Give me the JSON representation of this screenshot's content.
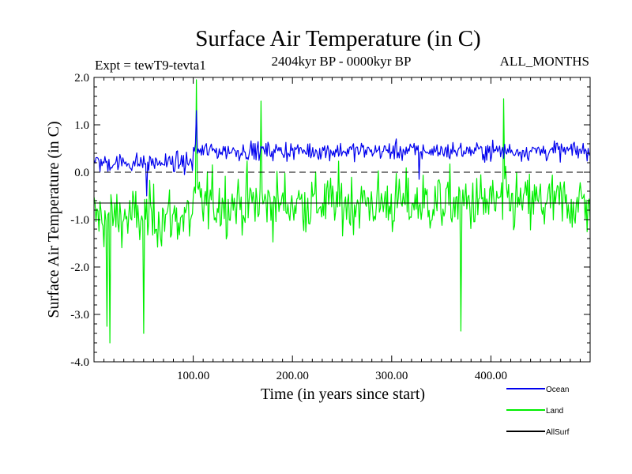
{
  "chart_data": {
    "type": "line",
    "title": "Surface Air Temperature (in C)",
    "subtitle": "2404kyr BP - 0000kyr BP",
    "experiment_label": "Expt = tewT9-tevta1",
    "months_label": "ALL_MONTHS",
    "xlabel": "Time (in years since start)",
    "ylabel": "Surface Air Temperature (in C)",
    "xlim": [
      0,
      500
    ],
    "ylim": [
      -4.0,
      2.0
    ],
    "x_ticks": [
      100,
      200,
      300,
      400
    ],
    "x_tick_labels": [
      "100.00",
      "200.00",
      "300.00",
      "400.00"
    ],
    "y_ticks": [
      2.0,
      1.0,
      0.0,
      -1.0,
      -2.0,
      -3.0,
      -4.0
    ],
    "y_tick_labels": [
      "2.0",
      "1.0",
      "0.0",
      "-1.0",
      "-2.0",
      "-3.0",
      "-4.0"
    ],
    "zero_line": 0.0,
    "n_points": 500,
    "series": [
      {
        "name": "Land",
        "color": "#00ee00",
        "mean_before_100yr": -0.95,
        "mean_after_100yr": -0.65,
        "envelope": {
          "min": -3.6,
          "max": 1.95
        },
        "extremes": [
          {
            "x": 16,
            "y": -3.6
          },
          {
            "x": 13,
            "y": -3.25
          },
          {
            "x": 50,
            "y": -3.4
          },
          {
            "x": 103,
            "y": 1.95
          },
          {
            "x": 370,
            "y": -3.35
          },
          {
            "x": 168,
            "y": 1.5
          },
          {
            "x": 413,
            "y": 1.55
          }
        ]
      },
      {
        "name": "Ocean",
        "color": "#0000ee",
        "mean_before_100yr": 0.2,
        "mean_after_100yr": 0.45,
        "envelope": {
          "min": -0.5,
          "max": 1.3
        },
        "extremes": [
          {
            "x": 103,
            "y": 1.3
          },
          {
            "x": 53,
            "y": -0.5
          },
          {
            "x": 328,
            "y": -0.15
          }
        ]
      },
      {
        "name": "AllSurf",
        "color": "#000000",
        "mean_before_100yr": -0.65,
        "mean_after_100yr": -0.65,
        "envelope": {
          "min": -0.65,
          "max": -0.65
        }
      }
    ],
    "legend": [
      {
        "label": "Ocean",
        "color": "#0000ee"
      },
      {
        "label": "Land",
        "color": "#00ee00"
      },
      {
        "label": "AllSurf",
        "color": "#000000"
      }
    ],
    "legend_position": "bottom-right"
  }
}
